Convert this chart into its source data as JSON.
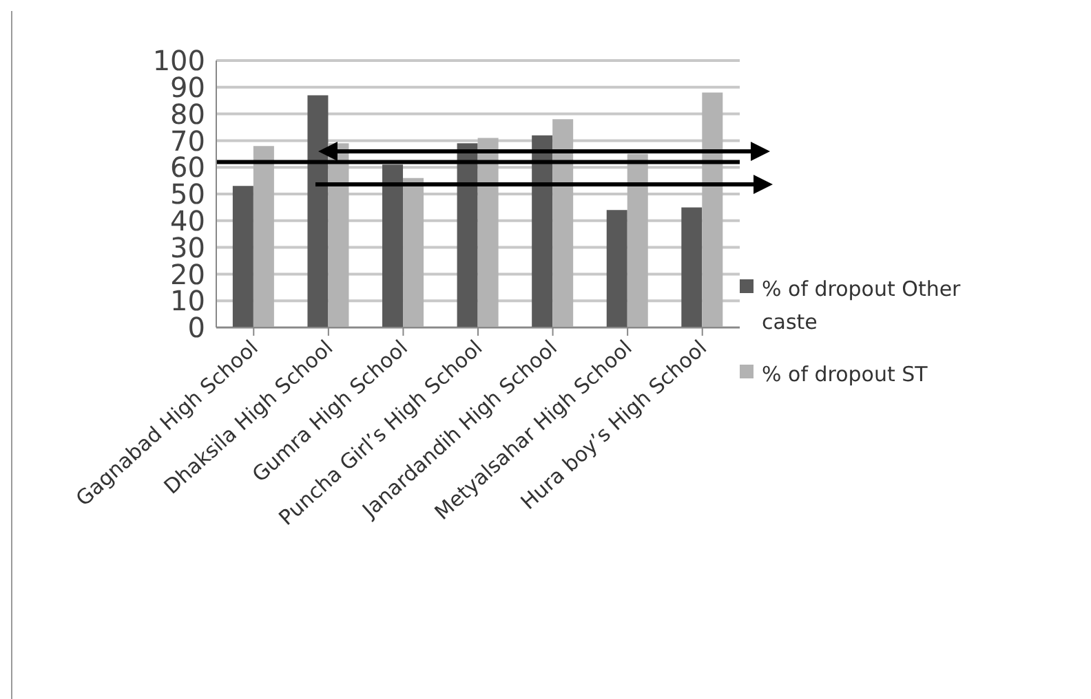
{
  "chart_data": {
    "type": "bar",
    "categories": [
      "Gagnabad High School",
      "Dhaksila High School",
      "Gumra High School",
      "Puncha Girl’s High School",
      "Janardandih High School",
      "Metyalsahar High School",
      "Hura boy’s High School"
    ],
    "series": [
      {
        "name": "% of dropout Other caste",
        "color": "#595959",
        "values": [
          53,
          87,
          61,
          69,
          72,
          44,
          45
        ]
      },
      {
        "name": "% of dropout  ST",
        "color": "#b3b3b3",
        "values": [
          68,
          69,
          56,
          71,
          78,
          65,
          88
        ]
      }
    ],
    "ylim": [
      0,
      100
    ],
    "yticks": [
      0,
      10,
      20,
      30,
      40,
      50,
      60,
      70,
      80,
      90,
      100
    ],
    "grid": "y",
    "legend": "right",
    "ref_lines": [
      {
        "axis": "y",
        "value": 62,
        "color": "#000000"
      }
    ]
  }
}
